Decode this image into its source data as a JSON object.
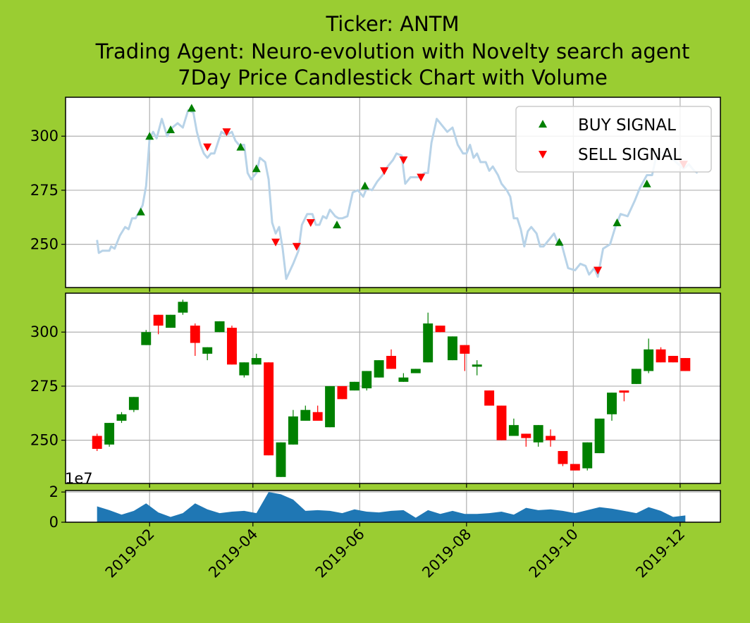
{
  "chart_data": {
    "type": "candlestick",
    "title_lines": [
      "Ticker: ANTM",
      "Trading Agent: Neuro-evolution with Novelty search agent",
      "7Day Price Candlestick Chart with Volume"
    ],
    "x_ticks": [
      "2019-02",
      "2019-04",
      "2019-06",
      "2019-08",
      "2019-10",
      "2019-12"
    ],
    "price_y_ticks": [
      250,
      275,
      300
    ],
    "volume_y_ticks": [
      0,
      2
    ],
    "volume_exponent_label": "1e7",
    "legend": {
      "placement": "upper right",
      "buy_label": "BUY SIGNAL",
      "sell_label": "SELL SIGNAL"
    },
    "colors": {
      "background": "#9acd32",
      "price_line": "#b8d3e8",
      "buy": "#008000",
      "sell": "#ff0000",
      "up": "#008000",
      "down": "#ff0000",
      "volume": "#1f77b4",
      "grid": "#b0b0b0"
    },
    "x_range": [
      "2018-12-15",
      "2019-12-24"
    ],
    "price_ylim": [
      230,
      318
    ],
    "volume_ylim": [
      0,
      2.1
    ],
    "grid": true,
    "price_line": [
      [
        "2019-01-02",
        252
      ],
      [
        "2019-01-03",
        246
      ],
      [
        "2019-01-05",
        247
      ],
      [
        "2019-01-09",
        247
      ],
      [
        "2019-01-10",
        249
      ],
      [
        "2019-01-12",
        248
      ],
      [
        "2019-01-15",
        254
      ],
      [
        "2019-01-18",
        258
      ],
      [
        "2019-01-20",
        257
      ],
      [
        "2019-01-22",
        262
      ],
      [
        "2019-01-24",
        262
      ],
      [
        "2019-01-26",
        265
      ],
      [
        "2019-01-28",
        268
      ],
      [
        "2019-01-30",
        277
      ],
      [
        "2019-02-01",
        299
      ],
      [
        "2019-02-03",
        302
      ],
      [
        "2019-02-05",
        299
      ],
      [
        "2019-02-08",
        308
      ],
      [
        "2019-02-11",
        300
      ],
      [
        "2019-02-14",
        304
      ],
      [
        "2019-02-17",
        306
      ],
      [
        "2019-02-20",
        304
      ],
      [
        "2019-02-23",
        312
      ],
      [
        "2019-02-26",
        311
      ],
      [
        "2019-02-28",
        302
      ],
      [
        "2019-03-02",
        296
      ],
      [
        "2019-03-04",
        292
      ],
      [
        "2019-03-06",
        290
      ],
      [
        "2019-03-08",
        292
      ],
      [
        "2019-03-10",
        292
      ],
      [
        "2019-03-12",
        297
      ],
      [
        "2019-03-14",
        302
      ],
      [
        "2019-03-16",
        301
      ],
      [
        "2019-03-18",
        301
      ],
      [
        "2019-03-20",
        302
      ],
      [
        "2019-03-22",
        298
      ],
      [
        "2019-03-24",
        296
      ],
      [
        "2019-03-27",
        296
      ],
      [
        "2019-03-29",
        283
      ],
      [
        "2019-03-31",
        280
      ],
      [
        "2019-04-03",
        283
      ],
      [
        "2019-04-05",
        290
      ],
      [
        "2019-04-08",
        288
      ],
      [
        "2019-04-10",
        280
      ],
      [
        "2019-04-12",
        260
      ],
      [
        "2019-04-14",
        255
      ],
      [
        "2019-04-16",
        258
      ],
      [
        "2019-04-18",
        248
      ],
      [
        "2019-04-20",
        234
      ],
      [
        "2019-04-24",
        241
      ],
      [
        "2019-04-27",
        247
      ],
      [
        "2019-04-29",
        259
      ],
      [
        "2019-05-02",
        264
      ],
      [
        "2019-05-05",
        264
      ],
      [
        "2019-05-07",
        259
      ],
      [
        "2019-05-09",
        259
      ],
      [
        "2019-05-11",
        263
      ],
      [
        "2019-05-13",
        262
      ],
      [
        "2019-05-15",
        266
      ],
      [
        "2019-05-18",
        263
      ],
      [
        "2019-05-20",
        262
      ],
      [
        "2019-05-22",
        262
      ],
      [
        "2019-05-25",
        263
      ],
      [
        "2019-05-28",
        274
      ],
      [
        "2019-05-31",
        275
      ],
      [
        "2019-06-03",
        272
      ],
      [
        "2019-06-05",
        276
      ],
      [
        "2019-06-08",
        275
      ],
      [
        "2019-06-11",
        279
      ],
      [
        "2019-06-14",
        282
      ],
      [
        "2019-06-17",
        286
      ],
      [
        "2019-06-20",
        289
      ],
      [
        "2019-06-22",
        292
      ],
      [
        "2019-06-25",
        291
      ],
      [
        "2019-06-27",
        278
      ],
      [
        "2019-06-30",
        281
      ],
      [
        "2019-07-02",
        281
      ],
      [
        "2019-07-05",
        281
      ],
      [
        "2019-07-08",
        283
      ],
      [
        "2019-07-10",
        283
      ],
      [
        "2019-07-12",
        297
      ],
      [
        "2019-07-15",
        308
      ],
      [
        "2019-07-18",
        305
      ],
      [
        "2019-07-21",
        302
      ],
      [
        "2019-07-24",
        304
      ],
      [
        "2019-07-27",
        296
      ],
      [
        "2019-07-30",
        292
      ],
      [
        "2019-08-01",
        292
      ],
      [
        "2019-08-03",
        296
      ],
      [
        "2019-08-05",
        290
      ],
      [
        "2019-08-07",
        292
      ],
      [
        "2019-08-09",
        288
      ],
      [
        "2019-08-12",
        288
      ],
      [
        "2019-08-14",
        284
      ],
      [
        "2019-08-16",
        286
      ],
      [
        "2019-08-19",
        282
      ],
      [
        "2019-08-21",
        278
      ],
      [
        "2019-08-24",
        275
      ],
      [
        "2019-08-26",
        272
      ],
      [
        "2019-08-28",
        262
      ],
      [
        "2019-08-30",
        262
      ],
      [
        "2019-09-01",
        257
      ],
      [
        "2019-09-03",
        249
      ],
      [
        "2019-09-05",
        256
      ],
      [
        "2019-09-07",
        258
      ],
      [
        "2019-09-10",
        255
      ],
      [
        "2019-09-12",
        249
      ],
      [
        "2019-09-14",
        249
      ],
      [
        "2019-09-17",
        252
      ],
      [
        "2019-09-20",
        255
      ],
      [
        "2019-09-22",
        251
      ],
      [
        "2019-09-24",
        251
      ],
      [
        "2019-09-26",
        245
      ],
      [
        "2019-09-28",
        239
      ],
      [
        "2019-10-02",
        238
      ],
      [
        "2019-10-05",
        241
      ],
      [
        "2019-10-08",
        240
      ],
      [
        "2019-10-10",
        236
      ],
      [
        "2019-10-13",
        239
      ],
      [
        "2019-10-15",
        235
      ],
      [
        "2019-10-18",
        248
      ],
      [
        "2019-10-22",
        250
      ],
      [
        "2019-10-25",
        258
      ],
      [
        "2019-10-28",
        264
      ],
      [
        "2019-11-01",
        263
      ],
      [
        "2019-11-05",
        270
      ],
      [
        "2019-11-08",
        276
      ],
      [
        "2019-11-12",
        282
      ],
      [
        "2019-11-15",
        282
      ],
      [
        "2019-11-18",
        293
      ],
      [
        "2019-11-22",
        292
      ],
      [
        "2019-11-26",
        290
      ],
      [
        "2019-11-30",
        287
      ],
      [
        "2019-12-03",
        285
      ],
      [
        "2019-12-06",
        287
      ],
      [
        "2019-12-09",
        284
      ],
      [
        "2019-12-11",
        283
      ]
    ],
    "buy_signals": [
      [
        "2019-01-27",
        265
      ],
      [
        "2019-02-01",
        300
      ],
      [
        "2019-02-13",
        303
      ],
      [
        "2019-02-25",
        313
      ],
      [
        "2019-03-25",
        295
      ],
      [
        "2019-04-03",
        285
      ],
      [
        "2019-05-19",
        259
      ],
      [
        "2019-06-04",
        277
      ],
      [
        "2019-09-23",
        251
      ],
      [
        "2019-10-26",
        260
      ],
      [
        "2019-11-12",
        278
      ]
    ],
    "sell_signals": [
      [
        "2019-03-06",
        295
      ],
      [
        "2019-03-17",
        302
      ],
      [
        "2019-04-14",
        251
      ],
      [
        "2019-04-26",
        249
      ],
      [
        "2019-05-04",
        260
      ],
      [
        "2019-06-15",
        284
      ],
      [
        "2019-06-26",
        289
      ],
      [
        "2019-07-06",
        281
      ],
      [
        "2019-10-15",
        238
      ],
      [
        "2019-12-03",
        287
      ]
    ],
    "candles": [
      [
        "2019-01-02",
        252,
        246,
        253,
        245
      ],
      [
        "2019-01-09",
        248,
        258,
        258,
        247
      ],
      [
        "2019-01-16",
        259,
        262,
        263,
        258
      ],
      [
        "2019-01-23",
        264,
        270,
        270,
        263
      ],
      [
        "2019-01-30",
        294,
        300,
        301,
        294
      ],
      [
        "2019-02-06",
        308,
        303,
        308,
        299
      ],
      [
        "2019-02-13",
        302,
        308,
        308,
        302
      ],
      [
        "2019-02-20",
        309,
        314,
        315,
        308
      ],
      [
        "2019-02-27",
        303,
        295,
        304,
        289
      ],
      [
        "2019-03-06",
        290,
        293,
        293,
        287
      ],
      [
        "2019-03-13",
        300,
        305,
        305,
        300
      ],
      [
        "2019-03-20",
        302,
        285,
        303,
        285
      ],
      [
        "2019-03-27",
        280,
        286,
        286,
        279
      ],
      [
        "2019-04-03",
        285,
        288,
        290,
        285
      ],
      [
        "2019-04-10",
        286,
        243,
        286,
        243
      ],
      [
        "2019-04-17",
        233,
        249,
        249,
        233
      ],
      [
        "2019-04-24",
        248,
        261,
        264,
        248
      ],
      [
        "2019-05-01",
        259,
        264,
        266,
        259
      ],
      [
        "2019-05-08",
        263,
        259,
        266,
        259
      ],
      [
        "2019-05-15",
        256,
        275,
        275,
        256
      ],
      [
        "2019-05-22",
        275,
        269,
        275,
        269
      ],
      [
        "2019-05-29",
        273,
        277,
        277,
        273
      ],
      [
        "2019-06-05",
        274,
        282,
        282,
        273
      ],
      [
        "2019-06-12",
        279,
        287,
        287,
        279
      ],
      [
        "2019-06-19",
        289,
        283,
        292,
        283
      ],
      [
        "2019-06-26",
        277,
        279,
        281,
        277
      ],
      [
        "2019-07-03",
        281,
        283,
        283,
        281
      ],
      [
        "2019-07-10",
        286,
        304,
        309,
        286
      ],
      [
        "2019-07-17",
        303,
        300,
        303,
        300
      ],
      [
        "2019-07-24",
        287,
        298,
        298,
        287
      ],
      [
        "2019-07-31",
        294,
        290,
        294,
        282
      ],
      [
        "2019-08-07",
        284,
        285,
        287,
        280
      ],
      [
        "2019-08-14",
        273,
        266,
        273,
        266
      ],
      [
        "2019-08-21",
        266,
        250,
        266,
        250
      ],
      [
        "2019-08-28",
        252,
        257,
        260,
        252
      ],
      [
        "2019-09-04",
        253,
        251,
        253,
        247
      ],
      [
        "2019-09-11",
        249,
        257,
        257,
        247
      ],
      [
        "2019-09-18",
        252,
        250,
        255,
        247
      ],
      [
        "2019-09-25",
        245,
        239,
        245,
        238
      ],
      [
        "2019-10-02",
        239,
        236,
        239,
        236
      ],
      [
        "2019-10-09",
        237,
        249,
        249,
        236
      ],
      [
        "2019-10-16",
        244,
        260,
        260,
        244
      ],
      [
        "2019-10-23",
        262,
        272,
        272,
        259
      ],
      [
        "2019-10-30",
        273,
        272,
        273,
        268
      ],
      [
        "2019-11-06",
        276,
        283,
        283,
        276
      ],
      [
        "2019-11-13",
        282,
        292,
        297,
        281
      ],
      [
        "2019-11-20",
        292,
        286,
        293,
        286
      ],
      [
        "2019-11-27",
        289,
        286,
        289,
        286
      ],
      [
        "2019-12-04",
        288,
        282,
        288,
        282
      ]
    ],
    "volume": [
      [
        "2019-01-02",
        1.05
      ],
      [
        "2019-01-09",
        0.8
      ],
      [
        "2019-01-16",
        0.5
      ],
      [
        "2019-01-23",
        0.75
      ],
      [
        "2019-01-30",
        1.25
      ],
      [
        "2019-02-06",
        0.65
      ],
      [
        "2019-02-13",
        0.35
      ],
      [
        "2019-02-20",
        0.6
      ],
      [
        "2019-02-27",
        1.25
      ],
      [
        "2019-03-06",
        0.85
      ],
      [
        "2019-03-13",
        0.6
      ],
      [
        "2019-03-20",
        0.7
      ],
      [
        "2019-03-27",
        0.75
      ],
      [
        "2019-04-03",
        0.6
      ],
      [
        "2019-04-10",
        2.0
      ],
      [
        "2019-04-17",
        1.85
      ],
      [
        "2019-04-24",
        1.5
      ],
      [
        "2019-05-01",
        0.75
      ],
      [
        "2019-05-08",
        0.8
      ],
      [
        "2019-05-15",
        0.75
      ],
      [
        "2019-05-22",
        0.6
      ],
      [
        "2019-05-29",
        0.85
      ],
      [
        "2019-06-05",
        0.7
      ],
      [
        "2019-06-12",
        0.65
      ],
      [
        "2019-06-19",
        0.75
      ],
      [
        "2019-06-26",
        0.8
      ],
      [
        "2019-07-03",
        0.3
      ],
      [
        "2019-07-10",
        0.8
      ],
      [
        "2019-07-17",
        0.55
      ],
      [
        "2019-07-24",
        0.75
      ],
      [
        "2019-07-31",
        0.55
      ],
      [
        "2019-08-07",
        0.55
      ],
      [
        "2019-08-14",
        0.6
      ],
      [
        "2019-08-21",
        0.7
      ],
      [
        "2019-08-28",
        0.5
      ],
      [
        "2019-09-04",
        0.95
      ],
      [
        "2019-09-11",
        0.8
      ],
      [
        "2019-09-18",
        0.85
      ],
      [
        "2019-09-25",
        0.75
      ],
      [
        "2019-10-02",
        0.6
      ],
      [
        "2019-10-09",
        0.8
      ],
      [
        "2019-10-16",
        1.0
      ],
      [
        "2019-10-23",
        0.9
      ],
      [
        "2019-10-30",
        0.75
      ],
      [
        "2019-11-06",
        0.6
      ],
      [
        "2019-11-13",
        1.0
      ],
      [
        "2019-11-20",
        0.75
      ],
      [
        "2019-11-27",
        0.35
      ],
      [
        "2019-12-04",
        0.45
      ]
    ]
  }
}
